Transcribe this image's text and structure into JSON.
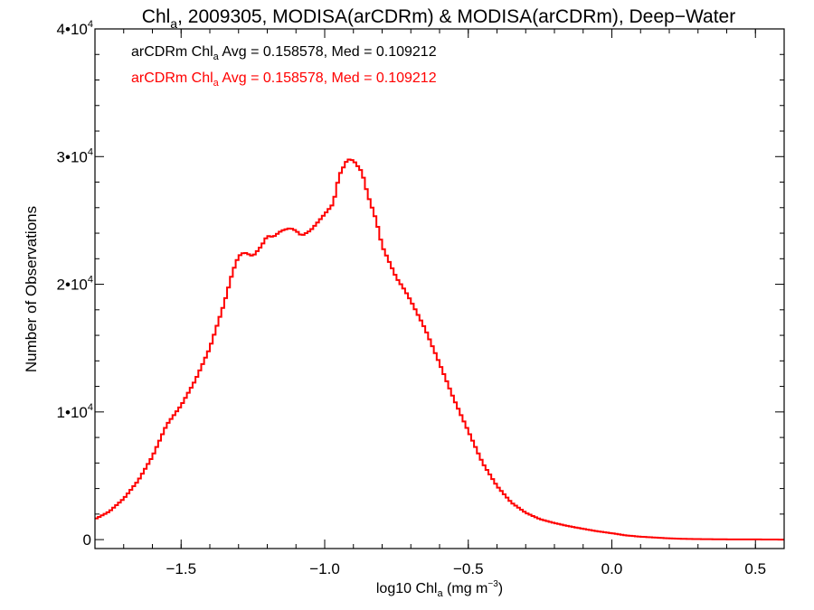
{
  "chart_data": {
    "type": "line",
    "step": true,
    "title": {
      "prefix": "Chl",
      "sub": "a",
      "rest": ", 2009305, MODISA(arCDRm) & MODISA(arCDRm), Deep−Water"
    },
    "xlabel": {
      "prefix": "log10 Chl",
      "sub": "a",
      "mid": " (mg m",
      "sup": "−3",
      "suffix": ")"
    },
    "ylabel": "Number of Observations",
    "xlim": [
      -1.8,
      0.6
    ],
    "ylim": [
      -700,
      40000
    ],
    "xticks": [
      {
        "v": -1.5,
        "label": "−1.5"
      },
      {
        "v": -1.0,
        "label": "−1.0"
      },
      {
        "v": -0.5,
        "label": "−0.5"
      },
      {
        "v": 0.0,
        "label": "0.0"
      },
      {
        "v": 0.5,
        "label": "0.5"
      }
    ],
    "yticks": [
      {
        "v": 0,
        "base": "0",
        "sup": ""
      },
      {
        "v": 10000,
        "base": "1•10",
        "sup": "4"
      },
      {
        "v": 20000,
        "base": "2•10",
        "sup": "4"
      },
      {
        "v": 30000,
        "base": "3•10",
        "sup": "4"
      },
      {
        "v": 40000,
        "base": "4•10",
        "sup": "4"
      }
    ],
    "grid": false,
    "annotations": [
      {
        "prefix": "arCDRm Chl",
        "sub": "a",
        "suffix": " Avg = 0.158578, Med = 0.109212",
        "color": "#000000"
      },
      {
        "prefix": "arCDRm Chl",
        "sub": "a",
        "suffix": " Avg = 0.158578, Med = 0.109212",
        "color": "#ff0000"
      }
    ],
    "series": [
      {
        "color": "#ff0000",
        "x": [
          -1.8,
          -1.75,
          -1.7,
          -1.65,
          -1.6,
          -1.55,
          -1.5,
          -1.45,
          -1.4,
          -1.35,
          -1.32,
          -1.3,
          -1.28,
          -1.25,
          -1.22,
          -1.2,
          -1.18,
          -1.15,
          -1.12,
          -1.1,
          -1.08,
          -1.05,
          -1.03,
          -1.0,
          -0.97,
          -0.95,
          -0.92,
          -0.9,
          -0.87,
          -0.85,
          -0.82,
          -0.8,
          -0.78,
          -0.75,
          -0.72,
          -0.7,
          -0.65,
          -0.6,
          -0.55,
          -0.5,
          -0.45,
          -0.4,
          -0.35,
          -0.3,
          -0.25,
          -0.2,
          -0.15,
          -0.1,
          -0.05,
          0.0,
          0.05,
          0.1,
          0.15,
          0.2,
          0.25,
          0.3,
          0.4,
          0.5,
          0.6
        ],
        "y": [
          1600,
          2200,
          3200,
          4600,
          6500,
          9000,
          10500,
          12500,
          15000,
          18500,
          21000,
          22200,
          22500,
          22200,
          23000,
          23800,
          23700,
          24200,
          24400,
          24200,
          23800,
          24200,
          24700,
          25500,
          26300,
          28500,
          29800,
          29700,
          28800,
          27000,
          25000,
          23000,
          22000,
          20500,
          19500,
          18700,
          16500,
          13800,
          11000,
          8500,
          6000,
          4200,
          2900,
          2100,
          1600,
          1300,
          1050,
          850,
          650,
          500,
          330,
          230,
          160,
          100,
          60,
          40,
          20,
          15,
          0
        ]
      }
    ]
  }
}
